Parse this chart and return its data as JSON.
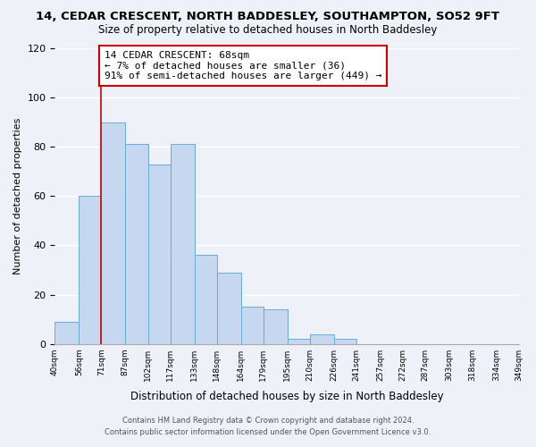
{
  "title": "14, CEDAR CRESCENT, NORTH BADDESLEY, SOUTHAMPTON, SO52 9FT",
  "subtitle": "Size of property relative to detached houses in North Baddesley",
  "xlabel": "Distribution of detached houses by size in North Baddesley",
  "ylabel": "Number of detached properties",
  "bin_labels": [
    "40sqm",
    "56sqm",
    "71sqm",
    "87sqm",
    "102sqm",
    "117sqm",
    "133sqm",
    "148sqm",
    "164sqm",
    "179sqm",
    "195sqm",
    "210sqm",
    "226sqm",
    "241sqm",
    "257sqm",
    "272sqm",
    "287sqm",
    "303sqm",
    "318sqm",
    "334sqm",
    "349sqm"
  ],
  "bar_values": [
    9,
    60,
    90,
    81,
    73,
    81,
    36,
    29,
    15,
    14,
    2,
    4,
    2,
    0,
    0,
    0,
    0,
    0,
    0,
    0
  ],
  "bar_color": "#c5d8f0",
  "bar_edge_color": "#6aabd2",
  "vline_x_index": 2,
  "vline_color": "#cc0000",
  "ylim": [
    0,
    120
  ],
  "yticks": [
    0,
    20,
    40,
    60,
    80,
    100,
    120
  ],
  "annotation_title": "14 CEDAR CRESCENT: 68sqm",
  "annotation_line1": "← 7% of detached houses are smaller (36)",
  "annotation_line2": "91% of semi-detached houses are larger (449) →",
  "annotation_box_color": "#ffffff",
  "annotation_box_edge_color": "#cc0000",
  "footer_line1": "Contains HM Land Registry data © Crown copyright and database right 2024.",
  "footer_line2": "Contains public sector information licensed under the Open Government Licence v3.0.",
  "background_color": "#eef2f8",
  "grid_color": "#ffffff",
  "bin_edges": [
    40,
    56,
    71,
    87,
    102,
    117,
    133,
    148,
    164,
    179,
    195,
    210,
    226,
    241,
    257,
    272,
    287,
    303,
    318,
    334,
    349
  ]
}
